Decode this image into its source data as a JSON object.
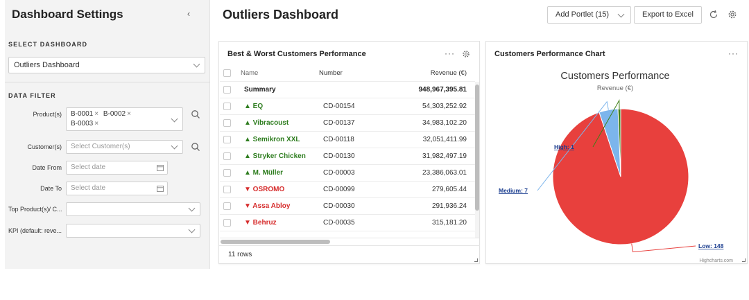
{
  "sidebar": {
    "title": "Dashboard Settings",
    "select_dashboard_label": "SELECT DASHBOARD",
    "dashboard_value": "Outliers Dashboard",
    "data_filter_label": "DATA FILTER",
    "products_label": "Product(s)",
    "products": [
      "B-0001",
      "B-0002",
      "B-0003"
    ],
    "customers_label": "Customer(s)",
    "customers_placeholder": "Select Customer(s)",
    "date_from_label": "Date From",
    "date_from_placeholder": "Select date",
    "date_to_label": "Date To",
    "date_to_placeholder": "Select date",
    "top_products_label": "Top Product(s)/ C...",
    "kpi_label": "KPI (default: reve..."
  },
  "header": {
    "title": "Outliers Dashboard",
    "add_portlet_label": "Add Portlet (15)",
    "export_label": "Export to Excel"
  },
  "table_portlet": {
    "title": "Best & Worst Customers Performance",
    "columns": {
      "name": "Name",
      "number": "Number",
      "revenue": "Revenue (€)"
    },
    "summary": {
      "name": "Summary",
      "revenue": "948,967,395.81"
    },
    "rows": [
      {
        "name": "▲ EQ",
        "number": "CD-00154",
        "revenue": "54,303,252.92",
        "trend": "up"
      },
      {
        "name": "▲ Vibracoust",
        "number": "CD-00137",
        "revenue": "34,983,102.20",
        "trend": "up"
      },
      {
        "name": "▲ Semikron XXL",
        "number": "CD-00118",
        "revenue": "32,051,411.99",
        "trend": "up"
      },
      {
        "name": "▲ Stryker Chicken",
        "number": "CD-00130",
        "revenue": "31,982,497.19",
        "trend": "up"
      },
      {
        "name": "▲ M. Müller",
        "number": "CD-00003",
        "revenue": "23,386,063.01",
        "trend": "up"
      },
      {
        "name": "▼ OSROMO",
        "number": "CD-00099",
        "revenue": "279,605.44",
        "trend": "down"
      },
      {
        "name": "▼ Assa Abloy",
        "number": "CD-00030",
        "revenue": "291,936.24",
        "trend": "down"
      },
      {
        "name": "▼ Behruz",
        "number": "CD-00035",
        "revenue": "315,181.20",
        "trend": "down"
      }
    ],
    "row_count": "11 rows"
  },
  "chart_portlet": {
    "title": "Customers Performance Chart",
    "credits": "Highcharts.com"
  },
  "chart_data": {
    "type": "pie",
    "title": "Customers Performance",
    "subtitle": "Revenue (€)",
    "slices": [
      {
        "label": "Low: 148",
        "value": 148,
        "color": "#e8403d"
      },
      {
        "label": "Medium: 7",
        "value": 7,
        "color": "#7cb5ec"
      },
      {
        "label": "High: 1",
        "value": 1,
        "color": "#3f7f17"
      }
    ]
  },
  "colors": {
    "up": "#2e7d1f",
    "down": "#d62c2c"
  }
}
